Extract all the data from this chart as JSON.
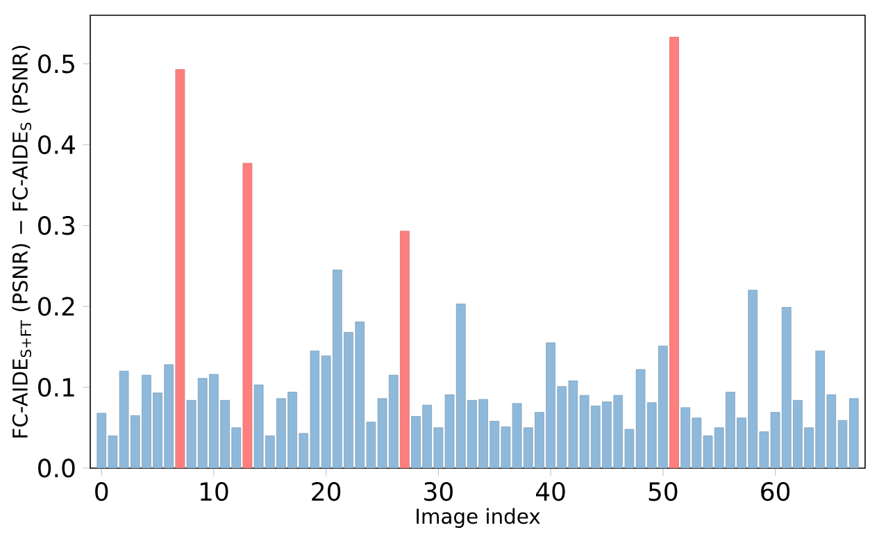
{
  "chart_data": {
    "type": "bar",
    "xlabel": "Image index",
    "ylabel": "FC-AIDE$_{S+FT}$ (PSNR) − FC-AIDE$_{S}$ (PSNR)",
    "x": [
      0,
      1,
      2,
      3,
      4,
      5,
      6,
      7,
      8,
      9,
      10,
      11,
      12,
      13,
      14,
      15,
      16,
      17,
      18,
      19,
      20,
      21,
      22,
      23,
      24,
      25,
      26,
      27,
      28,
      29,
      30,
      31,
      32,
      33,
      34,
      35,
      36,
      37,
      38,
      39,
      40,
      41,
      42,
      43,
      44,
      45,
      46,
      47,
      48,
      49,
      50,
      51,
      52,
      53,
      54,
      55,
      56,
      57,
      58,
      59,
      60,
      61,
      62,
      63,
      64,
      65,
      66,
      67
    ],
    "values": [
      0.068,
      0.04,
      0.12,
      0.065,
      0.115,
      0.093,
      0.128,
      0.493,
      0.084,
      0.111,
      0.116,
      0.084,
      0.05,
      0.377,
      0.103,
      0.04,
      0.086,
      0.094,
      0.043,
      0.145,
      0.139,
      0.245,
      0.168,
      0.181,
      0.057,
      0.086,
      0.115,
      0.293,
      0.064,
      0.078,
      0.05,
      0.091,
      0.203,
      0.084,
      0.085,
      0.058,
      0.051,
      0.08,
      0.05,
      0.069,
      0.155,
      0.101,
      0.108,
      0.09,
      0.077,
      0.082,
      0.09,
      0.048,
      0.122,
      0.081,
      0.151,
      0.533,
      0.075,
      0.062,
      0.04,
      0.05,
      0.094,
      0.062,
      0.22,
      0.045,
      0.069,
      0.199,
      0.084,
      0.05,
      0.145,
      0.091,
      0.059,
      0.086
    ],
    "colors": [
      "#8fb9da",
      "#8fb9da",
      "#8fb9da",
      "#8fb9da",
      "#8fb9da",
      "#8fb9da",
      "#8fb9da",
      "#ff7f7f",
      "#8fb9da",
      "#8fb9da",
      "#8fb9da",
      "#8fb9da",
      "#8fb9da",
      "#ff7f7f",
      "#8fb9da",
      "#8fb9da",
      "#8fb9da",
      "#8fb9da",
      "#8fb9da",
      "#8fb9da",
      "#8fb9da",
      "#8fb9da",
      "#8fb9da",
      "#8fb9da",
      "#8fb9da",
      "#8fb9da",
      "#8fb9da",
      "#ff7f7f",
      "#8fb9da",
      "#8fb9da",
      "#8fb9da",
      "#8fb9da",
      "#8fb9da",
      "#8fb9da",
      "#8fb9da",
      "#8fb9da",
      "#8fb9da",
      "#8fb9da",
      "#8fb9da",
      "#8fb9da",
      "#8fb9da",
      "#8fb9da",
      "#8fb9da",
      "#8fb9da",
      "#8fb9da",
      "#8fb9da",
      "#8fb9da",
      "#8fb9da",
      "#8fb9da",
      "#8fb9da",
      "#8fb9da",
      "#ff7f7f",
      "#8fb9da",
      "#8fb9da",
      "#8fb9da",
      "#8fb9da",
      "#8fb9da",
      "#8fb9da",
      "#8fb9da",
      "#8fb9da",
      "#8fb9da",
      "#8fb9da",
      "#8fb9da",
      "#8fb9da",
      "#8fb9da",
      "#8fb9da",
      "#8fb9da",
      "#8fb9da"
    ],
    "xlim": [
      -1,
      68
    ],
    "ylim": [
      0,
      0.56
    ],
    "xticks": [
      0,
      10,
      20,
      30,
      40,
      50,
      60
    ],
    "yticks": [
      {
        "value": 0,
        "label": "0.0"
      },
      0.1,
      0.2,
      0.3,
      0.4,
      0.5
    ]
  }
}
